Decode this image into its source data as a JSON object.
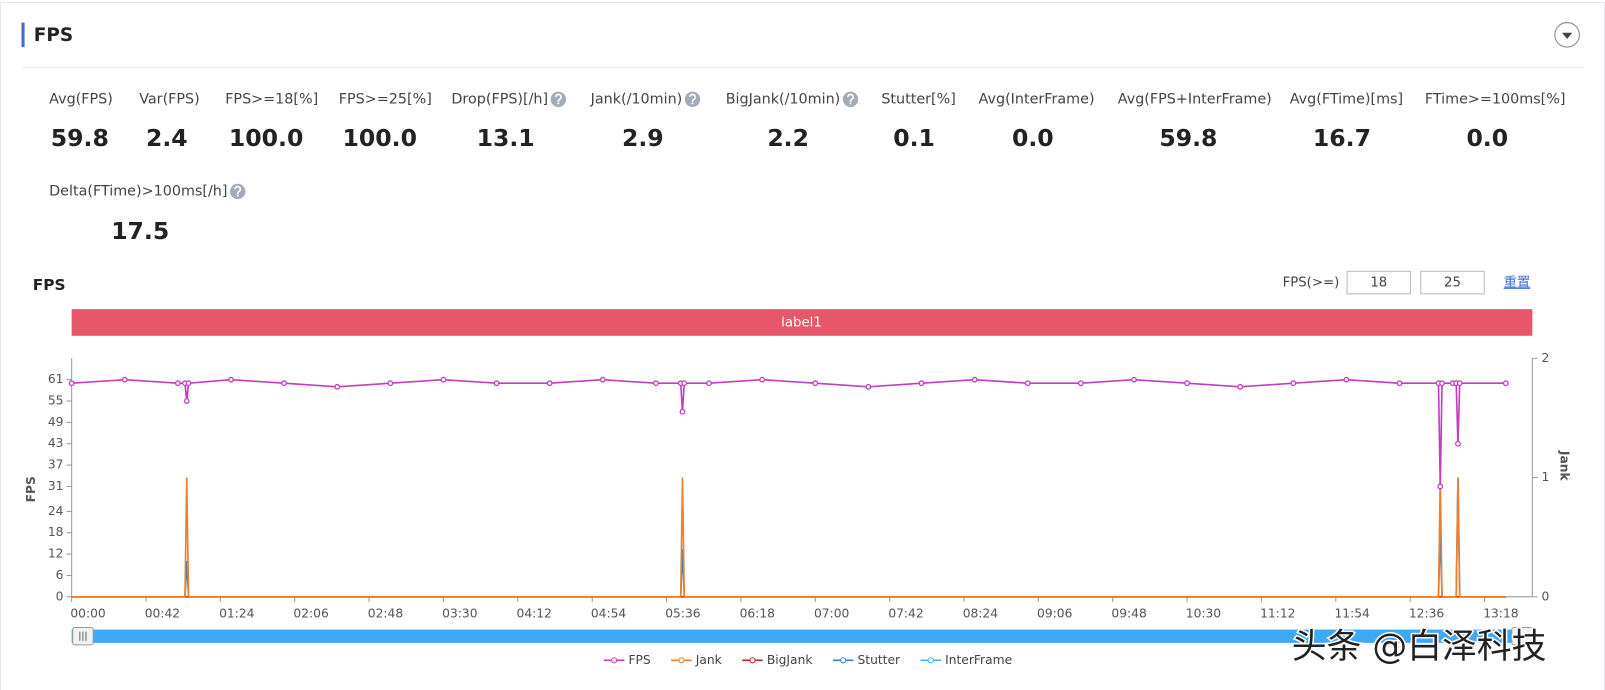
{
  "header": {
    "title": "FPS"
  },
  "metrics": [
    {
      "label": "Avg(FPS)",
      "value": "59.8"
    },
    {
      "label": "Var(FPS)",
      "value": "2.4"
    },
    {
      "label": "FPS>=18[%]",
      "value": "100.0"
    },
    {
      "label": "FPS>=25[%]",
      "value": "100.0"
    },
    {
      "label": "Drop(FPS)[/h]",
      "value": "13.1",
      "help": true
    },
    {
      "label": "Jank(/10min)",
      "value": "2.9",
      "help": true
    },
    {
      "label": "BigJank(/10min)",
      "value": "2.2",
      "help": true
    },
    {
      "label": "Stutter[%]",
      "value": "0.1"
    },
    {
      "label": "Avg(InterFrame)",
      "value": "0.0"
    },
    {
      "label": "Avg(FPS+InterFrame)",
      "value": "59.8"
    },
    {
      "label": "Avg(FTime)[ms]",
      "value": "16.7"
    },
    {
      "label": "FTime>=100ms[%]",
      "value": "0.0"
    },
    {
      "label": "Delta(FTime)>100ms[/h]",
      "value": "17.5",
      "help": true
    }
  ],
  "chart_panel": {
    "title": "FPS",
    "threshold_label": "FPS(>=)",
    "thresholds": [
      "18",
      "25"
    ],
    "reset": "重置",
    "band_label": "label1"
  },
  "chart_data": {
    "type": "line",
    "ylabel": "FPS",
    "y2label": "Jank",
    "x": [
      0,
      30,
      60,
      64,
      65,
      66,
      90,
      120,
      150,
      180,
      210,
      240,
      270,
      300,
      330,
      344,
      345,
      346,
      360,
      390,
      420,
      450,
      480,
      510,
      540,
      570,
      600,
      630,
      660,
      690,
      720,
      750,
      772,
      773,
      774,
      780,
      782,
      783,
      784,
      810
    ],
    "xlim": [
      0,
      825
    ],
    "xticks": [
      {
        "value": 0,
        "label": "00:00"
      },
      {
        "value": 42,
        "label": "00:42"
      },
      {
        "value": 84,
        "label": "01:24"
      },
      {
        "value": 126,
        "label": "02:06"
      },
      {
        "value": 168,
        "label": "02:48"
      },
      {
        "value": 210,
        "label": "03:30"
      },
      {
        "value": 252,
        "label": "04:12"
      },
      {
        "value": 294,
        "label": "04:54"
      },
      {
        "value": 336,
        "label": "05:36"
      },
      {
        "value": 378,
        "label": "06:18"
      },
      {
        "value": 420,
        "label": "07:00"
      },
      {
        "value": 462,
        "label": "07:42"
      },
      {
        "value": 504,
        "label": "08:24"
      },
      {
        "value": 546,
        "label": "09:06"
      },
      {
        "value": 588,
        "label": "09:48"
      },
      {
        "value": 630,
        "label": "10:30"
      },
      {
        "value": 672,
        "label": "11:12"
      },
      {
        "value": 714,
        "label": "11:54"
      },
      {
        "value": 756,
        "label": "12:36"
      },
      {
        "value": 798,
        "label": "13:18"
      }
    ],
    "ylim": [
      0,
      67
    ],
    "yticks": [
      0,
      6,
      12,
      18,
      24,
      31,
      37,
      43,
      49,
      55,
      61
    ],
    "y2lim": [
      0,
      2
    ],
    "y2ticks": [
      0,
      1,
      2
    ],
    "legend": "bottom",
    "series": [
      {
        "name": "FPS",
        "color": "#c23ec0",
        "markers": true,
        "values": [
          60,
          61,
          60,
          60,
          55,
          60,
          61,
          60,
          59,
          60,
          61,
          60,
          60,
          61,
          60,
          60,
          52,
          60,
          60,
          61,
          60,
          59,
          60,
          61,
          60,
          60,
          61,
          60,
          59,
          60,
          61,
          60,
          60,
          31,
          60,
          60,
          60,
          43,
          60,
          60
        ]
      },
      {
        "name": "Jank",
        "color": "#f07f2a",
        "axis": "y2",
        "values": [
          0,
          0,
          0,
          0,
          1,
          0,
          0,
          0,
          0,
          0,
          0,
          0,
          0,
          0,
          0,
          0,
          1,
          0,
          0,
          0,
          0,
          0,
          0,
          0,
          0,
          0,
          0,
          0,
          0,
          0,
          0,
          0,
          0,
          1,
          0,
          0,
          0,
          1,
          0,
          0
        ]
      },
      {
        "name": "BigJank",
        "color": "#b22a2a",
        "axis": "y2",
        "values": [
          0,
          0,
          0,
          0,
          0,
          0,
          0,
          0,
          0,
          0,
          0,
          0,
          0,
          0,
          0,
          0,
          0,
          0,
          0,
          0,
          0,
          0,
          0,
          0,
          0,
          0,
          0,
          0,
          0,
          0,
          0,
          0,
          0,
          0,
          0,
          0,
          0,
          0,
          0,
          0
        ]
      },
      {
        "name": "Stutter",
        "color": "#3a7fc1",
        "axis": "y2",
        "values": [
          0,
          0,
          0,
          0,
          0.3,
          0,
          0,
          0,
          0,
          0,
          0,
          0,
          0,
          0,
          0,
          0,
          0.4,
          0,
          0,
          0,
          0,
          0,
          0,
          0,
          0,
          0,
          0,
          0,
          0,
          0,
          0,
          0,
          0,
          0.55,
          0,
          0,
          0,
          1,
          0,
          0
        ]
      },
      {
        "name": "InterFrame",
        "color": "#3fb5e8",
        "axis": "y2",
        "values": [
          0,
          0,
          0,
          0,
          0,
          0,
          0,
          0,
          0,
          0,
          0,
          0,
          0,
          0,
          0,
          0,
          0,
          0,
          0,
          0,
          0,
          0,
          0,
          0,
          0,
          0,
          0,
          0,
          0,
          0,
          0,
          0,
          0,
          0,
          0,
          0,
          0,
          0,
          0,
          0
        ]
      }
    ]
  },
  "watermark": "头条 @白泽科技"
}
